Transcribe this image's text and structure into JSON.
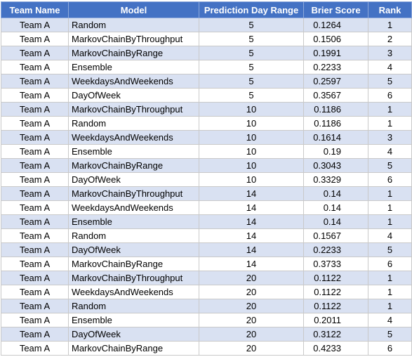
{
  "table": {
    "headers": {
      "team": "Team Name",
      "model": "Model",
      "range": "Prediction Day Range",
      "brier": "Brier Score",
      "rank": "Rank"
    },
    "rows": [
      {
        "team": "Team A",
        "model": "Random",
        "range": "5",
        "brier": "0.1264",
        "rank": "1"
      },
      {
        "team": "Team A",
        "model": "MarkovChainByThroughput",
        "range": "5",
        "brier": "0.1506",
        "rank": "2"
      },
      {
        "team": "Team A",
        "model": "MarkovChainByRange",
        "range": "5",
        "brier": "0.1991",
        "rank": "3"
      },
      {
        "team": "Team A",
        "model": "Ensemble",
        "range": "5",
        "brier": "0.2233",
        "rank": "4"
      },
      {
        "team": "Team A",
        "model": "WeekdaysAndWeekends",
        "range": "5",
        "brier": "0.2597",
        "rank": "5"
      },
      {
        "team": "Team A",
        "model": "DayOfWeek",
        "range": "5",
        "brier": "0.3567",
        "rank": "6"
      },
      {
        "team": "Team A",
        "model": "MarkovChainByThroughput",
        "range": "10",
        "brier": "0.1186",
        "rank": "1"
      },
      {
        "team": "Team A",
        "model": "Random",
        "range": "10",
        "brier": "0.1186",
        "rank": "1"
      },
      {
        "team": "Team A",
        "model": "WeekdaysAndWeekends",
        "range": "10",
        "brier": "0.1614",
        "rank": "3"
      },
      {
        "team": "Team A",
        "model": "Ensemble",
        "range": "10",
        "brier": "0.19",
        "rank": "4"
      },
      {
        "team": "Team A",
        "model": "MarkovChainByRange",
        "range": "10",
        "brier": "0.3043",
        "rank": "5"
      },
      {
        "team": "Team A",
        "model": "DayOfWeek",
        "range": "10",
        "brier": "0.3329",
        "rank": "6"
      },
      {
        "team": "Team A",
        "model": "MarkovChainByThroughput",
        "range": "14",
        "brier": "0.14",
        "rank": "1"
      },
      {
        "team": "Team A",
        "model": "WeekdaysAndWeekends",
        "range": "14",
        "brier": "0.14",
        "rank": "1"
      },
      {
        "team": "Team A",
        "model": "Ensemble",
        "range": "14",
        "brier": "0.14",
        "rank": "1"
      },
      {
        "team": "Team A",
        "model": "Random",
        "range": "14",
        "brier": "0.1567",
        "rank": "4"
      },
      {
        "team": "Team A",
        "model": "DayOfWeek",
        "range": "14",
        "brier": "0.2233",
        "rank": "5"
      },
      {
        "team": "Team A",
        "model": "MarkovChainByRange",
        "range": "14",
        "brier": "0.3733",
        "rank": "6"
      },
      {
        "team": "Team A",
        "model": "MarkovChainByThroughput",
        "range": "20",
        "brier": "0.1122",
        "rank": "1"
      },
      {
        "team": "Team A",
        "model": "WeekdaysAndWeekends",
        "range": "20",
        "brier": "0.1122",
        "rank": "1"
      },
      {
        "team": "Team A",
        "model": "Random",
        "range": "20",
        "brier": "0.1122",
        "rank": "1"
      },
      {
        "team": "Team A",
        "model": "Ensemble",
        "range": "20",
        "brier": "0.2011",
        "rank": "4"
      },
      {
        "team": "Team A",
        "model": "DayOfWeek",
        "range": "20",
        "brier": "0.3122",
        "rank": "5"
      },
      {
        "team": "Team A",
        "model": "MarkovChainByRange",
        "range": "20",
        "brier": "0.4233",
        "rank": "6"
      }
    ]
  },
  "colors": {
    "header_bg": "#4472c4",
    "header_text": "#ffffff",
    "band_bg": "#d9e1f2",
    "plain_bg": "#ffffff"
  }
}
